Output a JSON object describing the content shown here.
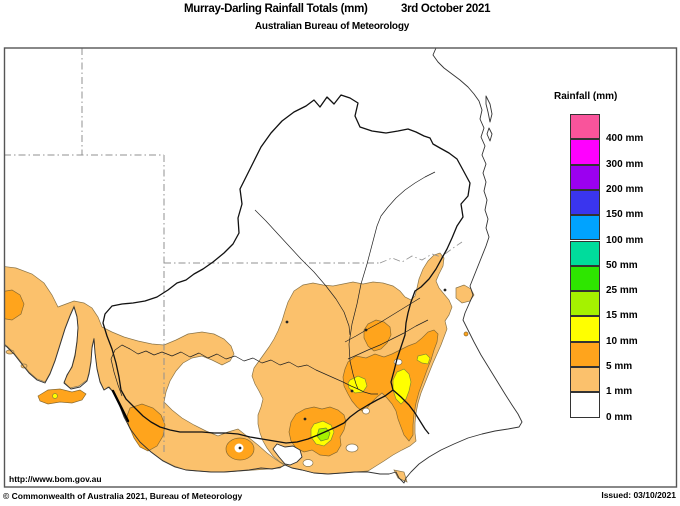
{
  "header": {
    "title": "Murray-Darling Rainfall Totals (mm)",
    "date": "3rd October 2021",
    "subtitle": "Australian Bureau of Meteorology"
  },
  "legend": {
    "title": "Rainfall (mm)",
    "items": [
      {
        "label": "400 mm",
        "color": "#F9549B"
      },
      {
        "label": "300 mm",
        "color": "#FF00FF"
      },
      {
        "label": "200 mm",
        "color": "#9B00F0"
      },
      {
        "label": "150 mm",
        "color": "#3A35EE"
      },
      {
        "label": "100 mm",
        "color": "#00A3FF"
      },
      {
        "label": "50 mm",
        "color": "#00DC9C"
      },
      {
        "label": "25 mm",
        "color": "#2EE600"
      },
      {
        "label": "15 mm",
        "color": "#A5F200"
      },
      {
        "label": "10 mm",
        "color": "#FFFF00"
      },
      {
        "label": "5 mm",
        "color": "#FFA41C"
      },
      {
        "label": "1 mm",
        "color": "#FBC16C"
      },
      {
        "label": "0 mm",
        "color": "#FFFFFF"
      }
    ]
  },
  "footer": {
    "url": "http://www.bom.gov.au",
    "copyright": "© Commonwealth of Australia 2021, Bureau of Meteorology",
    "issued": "Issued: 03/10/2021"
  }
}
